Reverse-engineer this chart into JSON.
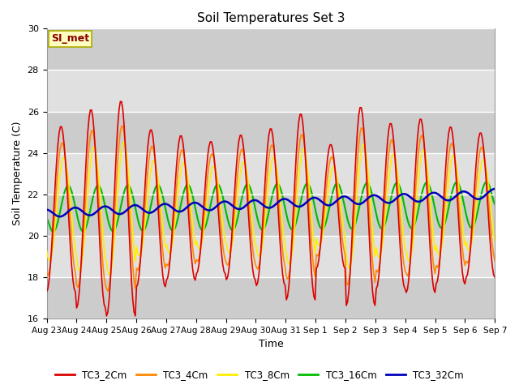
{
  "title": "Soil Temperatures Set 3",
  "xlabel": "Time",
  "ylabel": "Soil Temperature (C)",
  "ylim": [
    16,
    30
  ],
  "annotation_text": "SI_met",
  "annotation_color": "#8B0000",
  "annotation_bg": "#FFFFC0",
  "annotation_edge": "#AAAA00",
  "fig_bg": "#FFFFFF",
  "plot_bg_light": "#E8E8E8",
  "plot_bg_dark": "#D0D0D0",
  "series_colors": {
    "TC3_2Cm": "#DD0000",
    "TC3_4Cm": "#FF8800",
    "TC3_8Cm": "#FFEE00",
    "TC3_16Cm": "#00BB00",
    "TC3_32Cm": "#0000BB"
  },
  "series_linewidths": {
    "TC3_2Cm": 1.2,
    "TC3_4Cm": 1.2,
    "TC3_8Cm": 1.2,
    "TC3_16Cm": 1.5,
    "TC3_32Cm": 1.8
  },
  "tick_labels": [
    "Aug 23",
    "Aug 24",
    "Aug 25",
    "Aug 26",
    "Aug 27",
    "Aug 28",
    "Aug 29",
    "Aug 30",
    "Aug 31",
    "Sep 1",
    "Sep 2",
    "Sep 3",
    "Sep 4",
    "Sep 5",
    "Sep 6",
    "Sep 7"
  ],
  "yticks": [
    16,
    18,
    20,
    22,
    24,
    26,
    28,
    30
  ],
  "grid_color": "#FFFFFF",
  "tick_fontsize": 7.5,
  "label_fontsize": 9,
  "title_fontsize": 11
}
